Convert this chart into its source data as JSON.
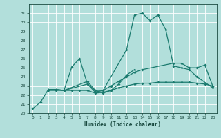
{
  "xlabel": "Humidex (Indice chaleur)",
  "xlim": [
    -0.5,
    23.5
  ],
  "ylim": [
    20,
    32
  ],
  "yticks": [
    20,
    21,
    22,
    23,
    24,
    25,
    26,
    27,
    28,
    29,
    30,
    31
  ],
  "xticks": [
    0,
    1,
    2,
    3,
    4,
    5,
    6,
    7,
    8,
    9,
    10,
    11,
    12,
    13,
    14,
    15,
    16,
    17,
    18,
    19,
    20,
    21,
    22,
    23
  ],
  "bg_color": "#b2dfdb",
  "grid_color": "#ffffff",
  "line_color": "#1a7a6e",
  "series1_x": [
    0,
    1,
    2,
    3,
    4,
    5,
    6,
    7,
    8,
    9,
    12,
    13,
    14,
    15,
    16,
    17,
    18,
    19,
    20,
    21,
    23
  ],
  "series1_y": [
    20.5,
    21.2,
    22.6,
    22.6,
    22.5,
    25.1,
    26.0,
    23.2,
    22.3,
    22.5,
    27.0,
    30.8,
    31.0,
    30.2,
    30.8,
    29.2,
    25.2,
    25.0,
    24.8,
    24.0,
    22.8
  ],
  "series2_x": [
    2,
    3,
    4,
    7,
    8,
    9,
    10,
    11,
    12,
    13,
    14,
    18,
    19,
    20,
    21,
    22,
    23
  ],
  "series2_y": [
    22.6,
    22.6,
    22.5,
    23.5,
    22.5,
    22.5,
    23.0,
    23.5,
    24.0,
    24.5,
    24.8,
    25.5,
    25.5,
    25.0,
    25.0,
    25.3,
    23.0
  ],
  "series3_x": [
    2,
    3,
    4,
    7,
    8,
    9,
    10,
    11,
    12,
    13
  ],
  "series3_y": [
    22.6,
    22.6,
    22.5,
    23.2,
    22.5,
    22.2,
    22.5,
    23.2,
    24.2,
    24.8
  ],
  "series4_x": [
    2,
    3,
    4,
    5,
    6,
    7,
    8,
    9,
    10,
    11,
    12,
    13,
    14,
    15,
    16,
    17,
    18,
    19,
    20,
    21,
    22,
    23
  ],
  "series4_y": [
    22.5,
    22.5,
    22.5,
    22.5,
    22.5,
    22.5,
    22.2,
    22.3,
    22.5,
    22.8,
    23.0,
    23.2,
    23.3,
    23.3,
    23.4,
    23.4,
    23.4,
    23.4,
    23.4,
    23.3,
    23.2,
    23.0
  ]
}
